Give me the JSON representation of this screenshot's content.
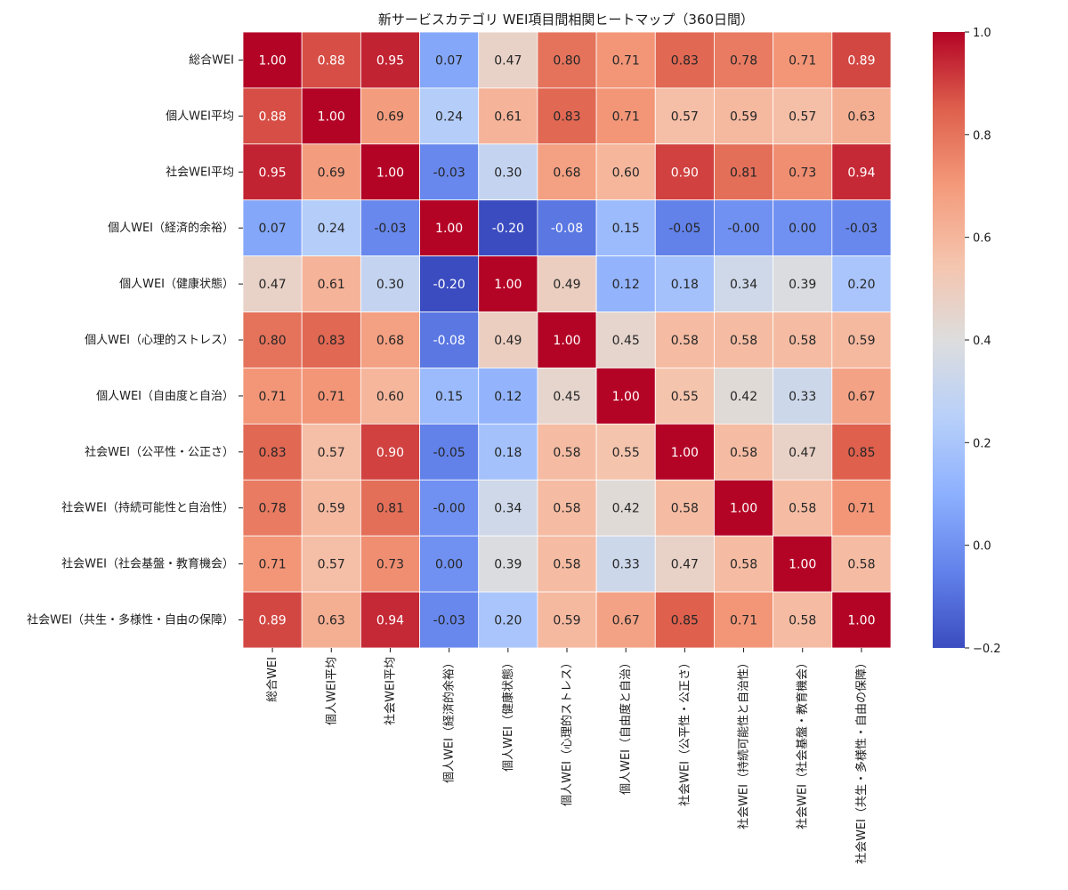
{
  "chart_data": {
    "type": "heatmap",
    "title": "新サービスカテゴリ WEI項目間相関ヒートマップ（360日間）",
    "labels": [
      "総合WEI",
      "個人WEI平均",
      "社会WEI平均",
      "個人WEI（経済的余裕）",
      "個人WEI（健康状態）",
      "個人WEI（心理的ストレス）",
      "個人WEI（自由度と自治）",
      "社会WEI（公平性・公正さ）",
      "社会WEI（持続可能性と自治性）",
      "社会WEI（社会基盤・教育機会）",
      "社会WEI（共生・多様性・自由の保障）"
    ],
    "matrix": [
      [
        1.0,
        0.88,
        0.95,
        0.07,
        0.47,
        0.8,
        0.71,
        0.83,
        0.78,
        0.71,
        0.89
      ],
      [
        0.88,
        1.0,
        0.69,
        0.24,
        0.61,
        0.83,
        0.71,
        0.57,
        0.59,
        0.57,
        0.63
      ],
      [
        0.95,
        0.69,
        1.0,
        -0.03,
        0.3,
        0.68,
        0.6,
        0.9,
        0.81,
        0.73,
        0.94
      ],
      [
        0.07,
        0.24,
        -0.03,
        1.0,
        -0.2,
        -0.08,
        0.15,
        -0.05,
        -0.0,
        0.0,
        -0.03
      ],
      [
        0.47,
        0.61,
        0.3,
        -0.2,
        1.0,
        0.49,
        0.12,
        0.18,
        0.34,
        0.39,
        0.2
      ],
      [
        0.8,
        0.83,
        0.68,
        -0.08,
        0.49,
        1.0,
        0.45,
        0.58,
        0.58,
        0.58,
        0.59
      ],
      [
        0.71,
        0.71,
        0.6,
        0.15,
        0.12,
        0.45,
        1.0,
        0.55,
        0.42,
        0.33,
        0.67
      ],
      [
        0.83,
        0.57,
        0.9,
        -0.05,
        0.18,
        0.58,
        0.55,
        1.0,
        0.58,
        0.47,
        0.85
      ],
      [
        0.78,
        0.59,
        0.81,
        -0.0,
        0.34,
        0.58,
        0.42,
        0.58,
        1.0,
        0.58,
        0.71
      ],
      [
        0.71,
        0.57,
        0.73,
        0.0,
        0.39,
        0.58,
        0.33,
        0.47,
        0.58,
        1.0,
        0.58
      ],
      [
        0.89,
        0.63,
        0.94,
        -0.03,
        0.2,
        0.59,
        0.67,
        0.85,
        0.71,
        0.58,
        1.0
      ]
    ],
    "value_format": "2 decimals",
    "colormap": "coolwarm",
    "vmin": -0.2,
    "vmax": 1.0,
    "colorbar_ticks": [
      "1.0",
      "0.8",
      "0.6",
      "0.4",
      "0.2",
      "0.0",
      "−0.2"
    ],
    "colorbar_tick_values": [
      1.0,
      0.8,
      0.6,
      0.4,
      0.2,
      0.0,
      -0.2
    ],
    "grid_line_color": "#ffffff"
  }
}
